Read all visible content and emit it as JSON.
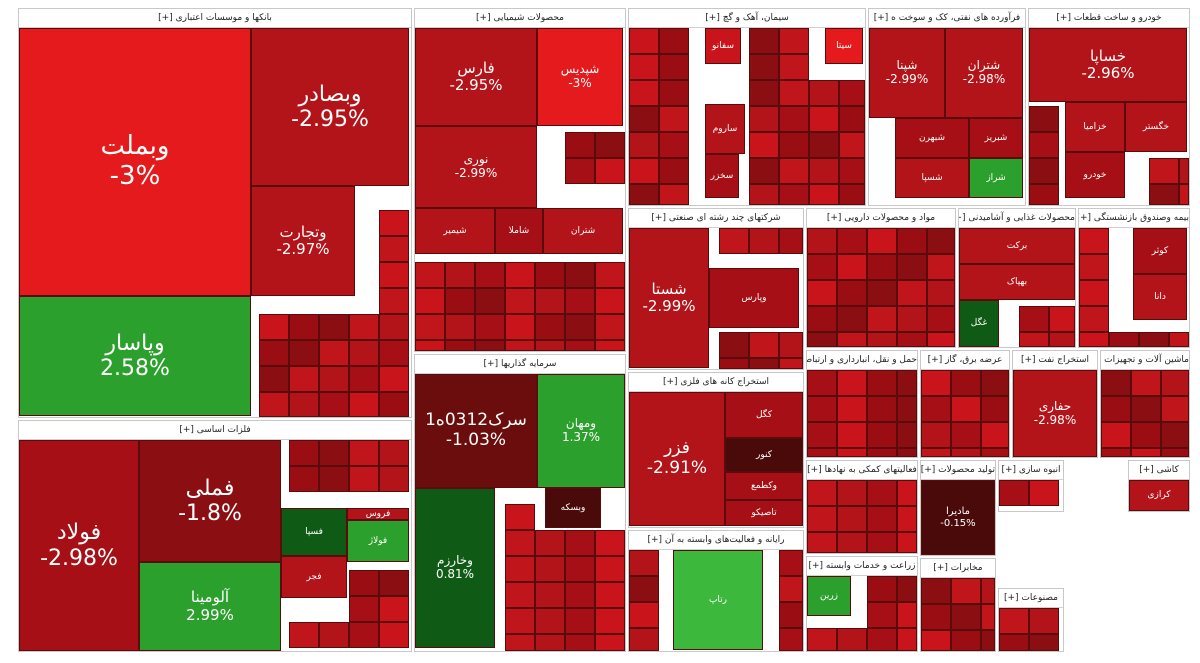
{
  "chart_data": {
    "type": "treemap",
    "title": "",
    "colors": {
      "strong_red": "#e41a1c",
      "red": "#c8141a",
      "dark_red": "#a50f15",
      "maroon": "#4a0a0a",
      "green": "#2ca02c",
      "dark_green": "#0f5a14",
      "bright_green": "#3cb93c"
    },
    "sectors": [
      {
        "name": "بانکها و موسسات اعتباری [+]",
        "tiles": [
          {
            "symbol": "وبملت",
            "change": "-3%",
            "color": "#e41a1c"
          },
          {
            "symbol": "وبصادر",
            "change": "-2.95%",
            "color": "#b3141a"
          },
          {
            "symbol": "وتجارت",
            "change": "-2.97%",
            "color": "#b3141a"
          },
          {
            "symbol": "وپاسار",
            "change": "2.58%",
            "color": "#2ca02c"
          }
        ]
      },
      {
        "name": "محصولات شیمیایی [+]",
        "tiles": [
          {
            "symbol": "فارس",
            "change": "-2.95%",
            "color": "#b3141a"
          },
          {
            "symbol": "شپدیس",
            "change": "-3%",
            "color": "#e41a1c"
          },
          {
            "symbol": "نوری",
            "change": "-2.99%",
            "color": "#b3141a"
          },
          {
            "symbol": "شیمیر",
            "change": "",
            "color": "#b3141a"
          },
          {
            "symbol": "شاملا",
            "change": "",
            "color": "#a50f15"
          },
          {
            "symbol": "شتران",
            "change": "",
            "color": "#b3141a"
          }
        ]
      },
      {
        "name": "سیمان، آهک و گچ [+]",
        "tiles": [
          {
            "symbol": "سفانو",
            "change": "",
            "color": "#c8141a"
          },
          {
            "symbol": "سیتا",
            "change": "",
            "color": "#e41a1c"
          },
          {
            "symbol": "ساروم",
            "change": "",
            "color": "#b3141a"
          },
          {
            "symbol": "سخزر",
            "change": "",
            "color": "#a50f15"
          }
        ]
      },
      {
        "name": "فرآورده های نفتی، کک و سوخت ه [+]",
        "tiles": [
          {
            "symbol": "شپنا",
            "change": "-2.99%",
            "color": "#b3141a"
          },
          {
            "symbol": "شتران",
            "change": "-2.98%",
            "color": "#b3141a"
          },
          {
            "symbol": "شبریز",
            "change": "",
            "color": "#a50f15"
          },
          {
            "symbol": "شبهرن",
            "change": "",
            "color": "#a50f15"
          },
          {
            "symbol": "شسپا",
            "change": "",
            "color": "#b3141a"
          },
          {
            "symbol": "شراز",
            "change": "",
            "color": "#2ca02c"
          }
        ]
      },
      {
        "name": "خودرو و ساخت قطعات [+]",
        "tiles": [
          {
            "symbol": "خساپا",
            "change": "-2.96%",
            "color": "#b3141a"
          },
          {
            "symbol": "خزامیا",
            "change": "",
            "color": "#b3141a"
          },
          {
            "symbol": "خگستر",
            "change": "",
            "color": "#b3141a"
          },
          {
            "symbol": "خودرو",
            "change": "",
            "color": "#a50f15"
          }
        ]
      },
      {
        "name": "شرکتهای چند رشته ای صنعتی [+]",
        "tiles": [
          {
            "symbol": "شستا",
            "change": "-2.99%",
            "color": "#b3141a"
          },
          {
            "symbol": "وپارس",
            "change": "",
            "color": "#a50f15"
          }
        ]
      },
      {
        "name": "مواد و محصولات دارویی [+]",
        "tiles": []
      },
      {
        "name": "محصولات غذایی و آشامیدنی [+]",
        "tiles": [
          {
            "symbol": "برکت",
            "change": "",
            "color": "#b3141a"
          },
          {
            "symbol": "بهپاک",
            "change": "",
            "color": "#b3141a"
          },
          {
            "symbol": "غگل",
            "change": "",
            "color": "#0f5a14"
          }
        ]
      },
      {
        "name": "بیمه وصندوق بازنشستگی [+]",
        "tiles": [
          {
            "symbol": "کوثر",
            "change": "",
            "color": "#a50f15"
          },
          {
            "symbol": "دانا",
            "change": "",
            "color": "#b3141a"
          }
        ]
      },
      {
        "name": "فلزات اساسی [+]",
        "tiles": [
          {
            "symbol": "فولاد",
            "change": "-2.98%",
            "color": "#a50f15"
          },
          {
            "symbol": "فملی",
            "change": "-1.8%",
            "color": "#8b0e12"
          },
          {
            "symbol": "آلومینا",
            "change": "2.99%",
            "color": "#2ca02c"
          },
          {
            "symbol": "فجر",
            "change": "",
            "color": "#b3141a"
          },
          {
            "symbol": "فولاژ",
            "change": "",
            "color": "#2ca02c"
          },
          {
            "symbol": "فسپا",
            "change": "",
            "color": "#0f5a14"
          },
          {
            "symbol": "فروس",
            "change": "",
            "color": "#b3141a"
          }
        ]
      },
      {
        "name": "سرمایه گذاریها [+]",
        "tiles": [
          {
            "symbol": "سرک0312ه1",
            "change": "-1.03%",
            "color": "#6b0d0d"
          },
          {
            "symbol": "ومهان",
            "change": "1.37%",
            "color": "#2ca02c"
          },
          {
            "symbol": "وخارزم",
            "change": "0.81%",
            "color": "#0f5a14"
          },
          {
            "symbol": "وبسکه",
            "change": "",
            "color": "#4a0a0a"
          }
        ]
      },
      {
        "name": "استخراج کانه های فلزی [+]",
        "tiles": [
          {
            "symbol": "فزر",
            "change": "-2.91%",
            "color": "#b3141a"
          },
          {
            "symbol": "کگل",
            "change": "",
            "color": "#a50f15"
          },
          {
            "symbol": "کنور",
            "change": "",
            "color": "#4a0a0a"
          },
          {
            "symbol": "وکطمع",
            "change": "",
            "color": "#a50f15"
          },
          {
            "symbol": "تاصیکو",
            "change": "",
            "color": "#a50f15"
          }
        ]
      },
      {
        "name": "رایانه و فعالیت‌های وابسته به آن [+]",
        "tiles": [
          {
            "symbol": "رتاپ",
            "change": "",
            "color": "#3cb93c"
          }
        ]
      },
      {
        "name": "حمل و نقل، انبارداری و ارتباطات [+]",
        "tiles": []
      },
      {
        "name": "عرضه برق، گاز [+]",
        "tiles": []
      },
      {
        "name": "استخراج نفت [+]",
        "tiles": [
          {
            "symbol": "حفاری",
            "change": "-2.98%",
            "color": "#b3141a"
          }
        ]
      },
      {
        "name": "ماشین آلات و تجهیزات [+]",
        "tiles": []
      },
      {
        "name": "فعالیتهای کمکی به نهادها [+]",
        "tiles": []
      },
      {
        "name": "تولید محصولات [+]",
        "tiles": [
          {
            "symbol": "مادیرا",
            "change": "-0.15%",
            "color": "#4a0a0a"
          }
        ]
      },
      {
        "name": "انبوه سازی [+]",
        "tiles": []
      },
      {
        "name": "کاشی [+]",
        "tiles": [
          {
            "symbol": "کرازی",
            "change": "",
            "color": "#b3141a"
          }
        ]
      },
      {
        "name": "زراعت و خدمات وابسته [+]",
        "tiles": [
          {
            "symbol": "زرین",
            "change": "",
            "color": "#2ca02c"
          }
        ]
      },
      {
        "name": "مخابرات [+]",
        "tiles": []
      },
      {
        "name": "مصنوعات [+]",
        "tiles": []
      }
    ]
  }
}
